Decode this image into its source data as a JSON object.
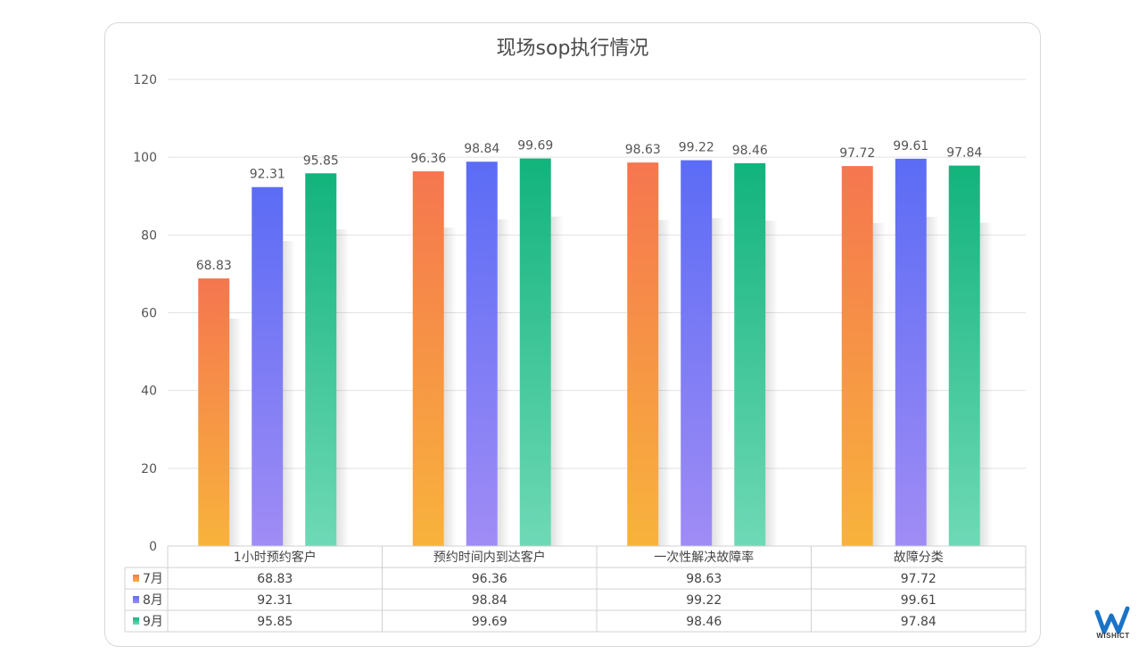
{
  "chart_data": {
    "type": "bar",
    "title": "现场sop执行情况",
    "categories": [
      "1小时预约客户",
      "预约时间内到达客户",
      "一次性解决故障率",
      "故障分类"
    ],
    "series": [
      {
        "name": "7月",
        "values": [
          68.83,
          96.36,
          98.63,
          97.72
        ],
        "color_top": "#f5764f",
        "color_bottom": "#f8b33c"
      },
      {
        "name": "8月",
        "values": [
          92.31,
          98.84,
          99.22,
          99.61
        ],
        "color_top": "#5b6cf5",
        "color_bottom": "#a08cf5"
      },
      {
        "name": "9月",
        "values": [
          95.85,
          99.69,
          98.46,
          97.84
        ],
        "color_top": "#12b37c",
        "color_bottom": "#6fd9b6"
      }
    ],
    "ylim": [
      0,
      120
    ],
    "yticks": [
      0,
      20,
      40,
      60,
      80,
      100,
      120
    ],
    "grid": true,
    "data_table": true,
    "legend_placement": "data-table-left"
  },
  "logo": {
    "text": "WISHICT",
    "color": "#1a73c7"
  }
}
